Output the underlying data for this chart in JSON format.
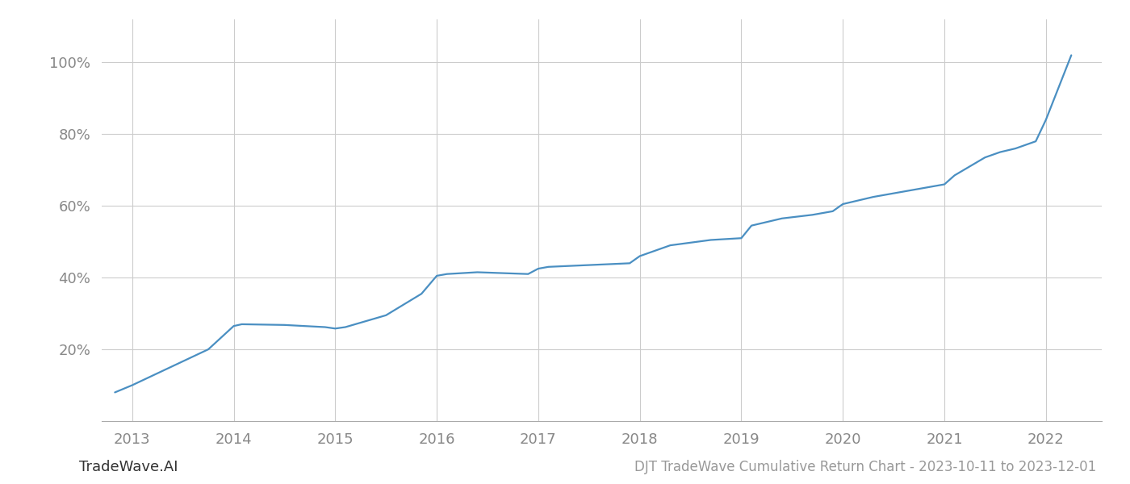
{
  "x_years": [
    2012.83,
    2013.0,
    2013.75,
    2014.0,
    2014.08,
    2014.5,
    2014.9,
    2015.0,
    2015.1,
    2015.5,
    2015.85,
    2016.0,
    2016.1,
    2016.4,
    2016.9,
    2017.0,
    2017.1,
    2017.5,
    2017.9,
    2018.0,
    2018.3,
    2018.7,
    2019.0,
    2019.1,
    2019.4,
    2019.7,
    2019.9,
    2020.0,
    2020.3,
    2020.6,
    2020.9,
    2021.0,
    2021.1,
    2021.4,
    2021.55,
    2021.7,
    2021.9,
    2022.0,
    2022.25
  ],
  "y_values": [
    0.08,
    0.1,
    0.2,
    0.265,
    0.27,
    0.268,
    0.262,
    0.258,
    0.262,
    0.295,
    0.355,
    0.405,
    0.41,
    0.415,
    0.41,
    0.425,
    0.43,
    0.435,
    0.44,
    0.46,
    0.49,
    0.505,
    0.51,
    0.545,
    0.565,
    0.575,
    0.585,
    0.605,
    0.625,
    0.64,
    0.655,
    0.66,
    0.685,
    0.735,
    0.75,
    0.76,
    0.78,
    0.84,
    1.02
  ],
  "line_color": "#4a8fc2",
  "background_color": "#ffffff",
  "grid_color": "#cccccc",
  "tick_label_color": "#888888",
  "bottom_left_color": "#333333",
  "bottom_right_color": "#999999",
  "x_ticks": [
    2013,
    2014,
    2015,
    2016,
    2017,
    2018,
    2019,
    2020,
    2021,
    2022
  ],
  "y_ticks": [
    0.2,
    0.4,
    0.6,
    0.8,
    1.0
  ],
  "ylim": [
    0.0,
    1.12
  ],
  "xlim": [
    2012.7,
    2022.55
  ],
  "footer_left": "TradeWave.AI",
  "footer_right": "DJT TradeWave Cumulative Return Chart - 2023-10-11 to 2023-12-01",
  "line_width": 1.6
}
